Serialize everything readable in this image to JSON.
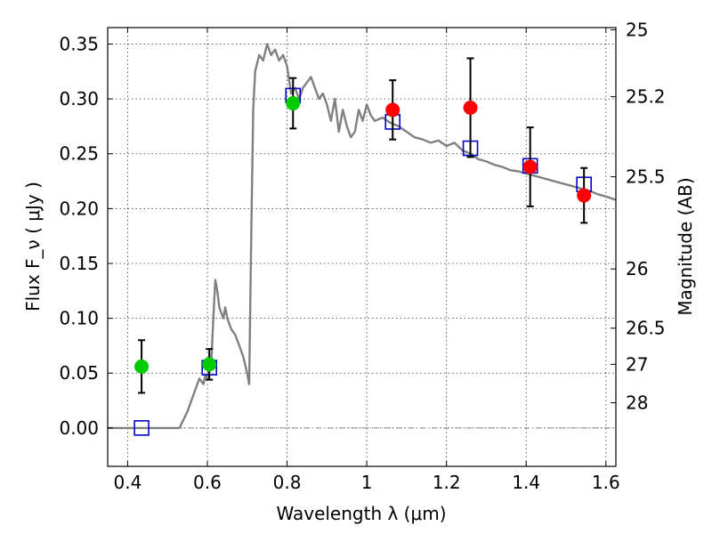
{
  "chart_data": {
    "type": "scatter",
    "xlabel": "Wavelength  λ (μm)",
    "ylabel": "Flux  F_ν  ( μJy )",
    "ylabel_right": "Magnitude (AB)",
    "xlim": [
      0.35,
      1.625
    ],
    "ylim": [
      -0.035,
      0.365
    ],
    "grid": true,
    "xticks": [
      0.4,
      0.6,
      0.8,
      1.0,
      1.2,
      1.4,
      1.6
    ],
    "xtick_labels": [
      "0.4",
      "0.6",
      "0.8",
      "1",
      "1.2",
      "1.4",
      "1.6"
    ],
    "yticks": [
      0.0,
      0.05,
      0.1,
      0.15,
      0.2,
      0.25,
      0.3,
      0.35
    ],
    "ytick_labels": [
      "0.00",
      "0.05",
      "0.10",
      "0.15",
      "0.20",
      "0.25",
      "0.30",
      "0.35"
    ],
    "right_ticks": [
      {
        "label": "25",
        "flux": 0.363
      },
      {
        "label": "25.2",
        "flux": 0.302
      },
      {
        "label": "25.5",
        "flux": 0.229
      },
      {
        "label": "26",
        "flux": 0.145
      },
      {
        "label": "26.5",
        "flux": 0.091
      },
      {
        "label": "27",
        "flux": 0.058
      },
      {
        "label": "28",
        "flux": 0.023
      }
    ],
    "series": [
      {
        "kind": "line",
        "color": "#808080",
        "x": [
          0.35,
          0.53,
          0.55,
          0.565,
          0.58,
          0.59,
          0.595,
          0.6,
          0.605,
          0.61,
          0.615,
          0.62,
          0.625,
          0.63,
          0.64,
          0.645,
          0.65,
          0.66,
          0.67,
          0.68,
          0.69,
          0.7,
          0.705,
          0.71,
          0.715,
          0.72,
          0.73,
          0.74,
          0.75,
          0.76,
          0.77,
          0.78,
          0.79,
          0.8,
          0.81,
          0.82,
          0.83,
          0.84,
          0.85,
          0.86,
          0.87,
          0.88,
          0.89,
          0.9,
          0.91,
          0.92,
          0.93,
          0.94,
          0.95,
          0.96,
          0.97,
          0.98,
          0.99,
          1.0,
          1.01,
          1.02,
          1.04,
          1.06,
          1.08,
          1.1,
          1.12,
          1.14,
          1.16,
          1.18,
          1.2,
          1.22,
          1.24,
          1.26,
          1.28,
          1.3,
          1.32,
          1.34,
          1.36,
          1.38,
          1.4,
          1.42,
          1.44,
          1.46,
          1.48,
          1.5,
          1.52,
          1.54,
          1.56,
          1.58,
          1.6,
          1.625
        ],
        "y": [
          0.0,
          0.0,
          0.015,
          0.03,
          0.045,
          0.04,
          0.048,
          0.045,
          0.06,
          0.06,
          0.1,
          0.135,
          0.125,
          0.11,
          0.1,
          0.11,
          0.1,
          0.09,
          0.085,
          0.075,
          0.065,
          0.05,
          0.04,
          0.17,
          0.29,
          0.325,
          0.34,
          0.335,
          0.35,
          0.34,
          0.345,
          0.335,
          0.34,
          0.33,
          0.305,
          0.31,
          0.3,
          0.31,
          0.315,
          0.32,
          0.31,
          0.3,
          0.305,
          0.295,
          0.28,
          0.3,
          0.27,
          0.29,
          0.275,
          0.265,
          0.27,
          0.29,
          0.28,
          0.295,
          0.285,
          0.28,
          0.283,
          0.278,
          0.275,
          0.27,
          0.265,
          0.263,
          0.26,
          0.262,
          0.257,
          0.26,
          0.253,
          0.25,
          0.245,
          0.243,
          0.24,
          0.238,
          0.235,
          0.234,
          0.232,
          0.23,
          0.228,
          0.226,
          0.224,
          0.222,
          0.22,
          0.218,
          0.216,
          0.213,
          0.211,
          0.208
        ]
      },
      {
        "kind": "square",
        "color": "#0000cc",
        "x": [
          0.435,
          0.605,
          0.815,
          1.065,
          1.26,
          1.41,
          1.545
        ],
        "y": [
          0.0,
          0.055,
          0.303,
          0.279,
          0.255,
          0.239,
          0.222
        ]
      },
      {
        "kind": "errorbar",
        "color": "#000000",
        "x": [
          0.435,
          0.605,
          0.815,
          1.065,
          1.26,
          1.41,
          1.545
        ],
        "y": [
          0.056,
          0.058,
          0.296,
          0.29,
          0.292,
          0.238,
          0.212
        ],
        "err": [
          0.024,
          0.014,
          0.023,
          0.027,
          0.045,
          0.036,
          0.025
        ]
      },
      {
        "kind": "circle",
        "color": "#00cc00",
        "x": [
          0.435,
          0.605,
          0.815
        ],
        "y": [
          0.056,
          0.058,
          0.296
        ]
      },
      {
        "kind": "circle",
        "color": "#ff0000",
        "x": [
          1.065,
          1.26,
          1.41,
          1.545
        ],
        "y": [
          0.29,
          0.292,
          0.238,
          0.212
        ]
      }
    ]
  }
}
